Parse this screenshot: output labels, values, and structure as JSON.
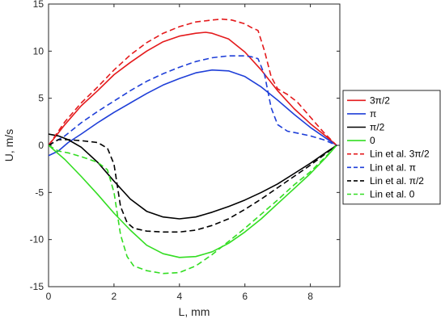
{
  "chart_data": {
    "type": "line",
    "xlabel": "L, mm",
    "ylabel": "U, m/s",
    "xlim": [
      0,
      8.9
    ],
    "ylim": [
      -15,
      15
    ],
    "x_ticks": [
      0,
      2,
      4,
      6,
      8
    ],
    "y_ticks": [
      -15,
      -10,
      -5,
      0,
      5,
      10,
      15
    ],
    "x_tick_labels": [
      "0",
      "2",
      "4",
      "6",
      "8"
    ],
    "y_tick_labels": [
      "-15",
      "-10",
      "-5",
      "0",
      "5",
      "10",
      "15"
    ],
    "grid": false,
    "legend_position": "right, outside plot",
    "series": [
      {
        "name": "3π/2",
        "color": "#e41a1c",
        "dash": "solid",
        "x": [
          0,
          0.5,
          1.0,
          1.5,
          2.0,
          2.5,
          3.0,
          3.5,
          4.0,
          4.5,
          4.8,
          5.0,
          5.5,
          6.0,
          6.5,
          7.0,
          7.5,
          8.0,
          8.5,
          8.8
        ],
        "y": [
          0,
          2.2,
          4.2,
          5.8,
          7.5,
          8.8,
          10.0,
          11.0,
          11.6,
          11.9,
          12.0,
          11.9,
          11.3,
          9.9,
          8.0,
          5.8,
          3.9,
          2.3,
          0.9,
          0
        ]
      },
      {
        "name": "π",
        "color": "#1f3fd8",
        "dash": "solid",
        "x": [
          0,
          0.3,
          0.6,
          1.0,
          1.5,
          2.0,
          2.5,
          3.0,
          3.5,
          4.0,
          4.5,
          5.0,
          5.5,
          6.0,
          6.5,
          7.0,
          7.5,
          8.0,
          8.5,
          8.8
        ],
        "y": [
          -1.1,
          -0.6,
          0.3,
          1.2,
          2.4,
          3.5,
          4.5,
          5.5,
          6.4,
          7.1,
          7.7,
          8.0,
          7.9,
          7.3,
          6.2,
          4.8,
          3.3,
          1.9,
          0.7,
          0
        ]
      },
      {
        "name": "π/2",
        "color": "#000000",
        "dash": "solid",
        "x": [
          0,
          0.3,
          0.6,
          1.0,
          1.5,
          2.0,
          2.5,
          3.0,
          3.5,
          4.0,
          4.5,
          5.0,
          5.5,
          6.0,
          6.5,
          7.0,
          7.5,
          8.0,
          8.5,
          8.8
        ],
        "y": [
          1.2,
          1.0,
          0.6,
          -0.2,
          -1.8,
          -3.8,
          -5.7,
          -7.0,
          -7.6,
          -7.8,
          -7.6,
          -7.1,
          -6.5,
          -5.8,
          -5.0,
          -4.1,
          -3.0,
          -1.9,
          -0.7,
          0
        ]
      },
      {
        "name": "0",
        "color": "#33dd22",
        "dash": "solid",
        "x": [
          0,
          0.5,
          1.0,
          1.5,
          2.0,
          2.5,
          3.0,
          3.5,
          4.0,
          4.5,
          5.0,
          5.5,
          6.0,
          6.5,
          7.0,
          7.5,
          8.0,
          8.5,
          8.8
        ],
        "y": [
          0,
          -1.5,
          -3.3,
          -5.2,
          -7.2,
          -9.0,
          -10.6,
          -11.5,
          -11.9,
          -11.8,
          -11.3,
          -10.4,
          -9.2,
          -7.8,
          -6.2,
          -4.6,
          -3.0,
          -1.2,
          0
        ]
      },
      {
        "name": "Lin et al. 3π/2",
        "color": "#e41a1c",
        "dash": "dashed",
        "x": [
          0,
          0.5,
          1.0,
          1.5,
          2.0,
          2.5,
          3.0,
          3.5,
          4.0,
          4.5,
          5.0,
          5.3,
          5.6,
          6.0,
          6.2,
          6.4,
          6.6,
          6.8,
          7.0,
          7.3,
          7.6,
          8.0,
          8.4,
          8.8
        ],
        "y": [
          0,
          2.5,
          4.5,
          6.2,
          8.0,
          9.6,
          10.9,
          11.9,
          12.6,
          13.1,
          13.3,
          13.4,
          13.3,
          12.9,
          12.5,
          12.2,
          10.0,
          7.3,
          6.0,
          5.4,
          4.6,
          3.0,
          1.4,
          0
        ]
      },
      {
        "name": "Lin et al. π",
        "color": "#1f3fd8",
        "dash": "dashed",
        "x": [
          0,
          0.5,
          1.0,
          1.5,
          2.0,
          2.5,
          3.0,
          3.5,
          4.0,
          4.5,
          5.0,
          5.5,
          6.0,
          6.2,
          6.4,
          6.6,
          6.8,
          7.0,
          7.3,
          7.6,
          8.0,
          8.4,
          8.8
        ],
        "y": [
          0,
          1.0,
          2.4,
          3.6,
          4.7,
          5.8,
          6.8,
          7.6,
          8.3,
          8.9,
          9.3,
          9.5,
          9.5,
          9.4,
          9.2,
          7.5,
          4.0,
          2.2,
          1.5,
          1.3,
          1.0,
          0.6,
          0
        ]
      },
      {
        "name": "Lin et al. π/2",
        "color": "#000000",
        "dash": "dashed",
        "x": [
          0,
          0.3,
          0.6,
          1.0,
          1.5,
          1.8,
          2.0,
          2.2,
          2.4,
          2.6,
          3.0,
          3.5,
          4.0,
          4.5,
          5.0,
          5.5,
          6.0,
          6.5,
          7.0,
          7.5,
          8.0,
          8.5,
          8.8
        ],
        "y": [
          0,
          0.6,
          0.6,
          0.5,
          0.3,
          -0.3,
          -2.0,
          -6.5,
          -8.2,
          -8.8,
          -9.1,
          -9.2,
          -9.2,
          -9.0,
          -8.5,
          -7.8,
          -6.8,
          -5.7,
          -4.5,
          -3.3,
          -2.1,
          -0.8,
          0
        ]
      },
      {
        "name": "Lin et al. 0",
        "color": "#33dd22",
        "dash": "dashed",
        "x": [
          0,
          0.3,
          0.6,
          1.0,
          1.5,
          1.8,
          2.0,
          2.2,
          2.4,
          2.6,
          3.0,
          3.5,
          4.0,
          4.5,
          5.0,
          5.5,
          6.0,
          6.5,
          7.0,
          7.5,
          8.0,
          8.5,
          8.8
        ],
        "y": [
          0,
          -0.6,
          -0.8,
          -1.2,
          -1.8,
          -2.6,
          -5.0,
          -9.5,
          -11.8,
          -12.8,
          -13.3,
          -13.6,
          -13.5,
          -12.8,
          -11.6,
          -10.2,
          -8.8,
          -7.3,
          -5.8,
          -4.2,
          -2.8,
          -1.1,
          0
        ]
      }
    ]
  }
}
